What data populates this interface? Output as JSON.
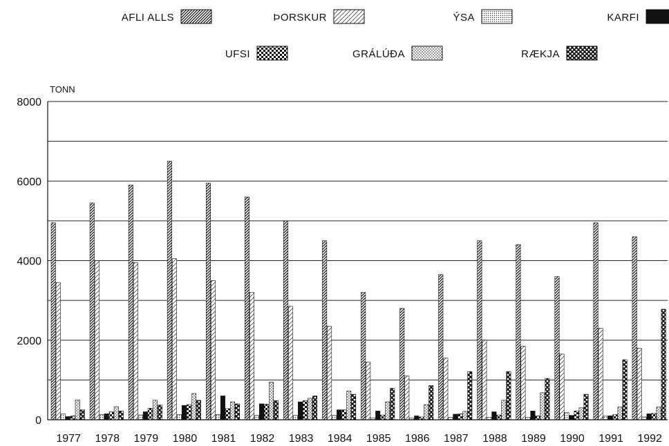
{
  "chart_data": {
    "type": "bar",
    "ylabel": "TONN",
    "ylim": [
      0,
      8000
    ],
    "y_ticks": [
      0,
      2000,
      4000,
      6000,
      8000
    ],
    "grid": "horizontal, every 1000",
    "legend_position": "top",
    "categories": [
      "1977",
      "1978",
      "1979",
      "1980",
      "1981",
      "1982",
      "1983",
      "1984",
      "1985",
      "1986",
      "1987",
      "1988",
      "1989",
      "1990",
      "1991",
      "1992"
    ],
    "series": [
      {
        "name": "AFLI ALLS",
        "pattern": "dense-diagonal-hatch",
        "values": [
          4950,
          5450,
          5900,
          6500,
          5950,
          5600,
          5000,
          4500,
          3200,
          2800,
          3650,
          4500,
          4400,
          3600,
          4950,
          4600
        ]
      },
      {
        "name": "ÞORSKUR",
        "pattern": "light-diagonal-hatch",
        "values": [
          3450,
          4000,
          3950,
          4050,
          3500,
          3200,
          2850,
          2350,
          1450,
          1100,
          1550,
          2000,
          1850,
          1650,
          2300,
          1800
        ]
      },
      {
        "name": "ÝSA",
        "pattern": "fine-dots",
        "values": [
          150,
          130,
          120,
          130,
          130,
          110,
          110,
          110,
          50,
          40,
          60,
          60,
          60,
          180,
          90,
          70
        ]
      },
      {
        "name": "KARFI",
        "pattern": "solid-black",
        "values": [
          80,
          150,
          200,
          360,
          600,
          400,
          450,
          250,
          220,
          100,
          140,
          200,
          220,
          110,
          100,
          150
        ]
      },
      {
        "name": "UFSI",
        "pattern": "checkered",
        "values": [
          100,
          200,
          290,
          380,
          280,
          390,
          480,
          250,
          120,
          70,
          150,
          120,
          100,
          220,
          130,
          160
        ]
      },
      {
        "name": "GRÁLÚÐA",
        "pattern": "stipple",
        "values": [
          500,
          330,
          490,
          660,
          450,
          950,
          540,
          720,
          450,
          380,
          210,
          490,
          680,
          300,
          320,
          320
        ]
      },
      {
        "name": "RÆKJA",
        "pattern": "cross-hatch",
        "values": [
          250,
          220,
          370,
          490,
          400,
          480,
          600,
          640,
          790,
          860,
          1210,
          1210,
          1040,
          640,
          1510,
          2780
        ]
      }
    ]
  }
}
